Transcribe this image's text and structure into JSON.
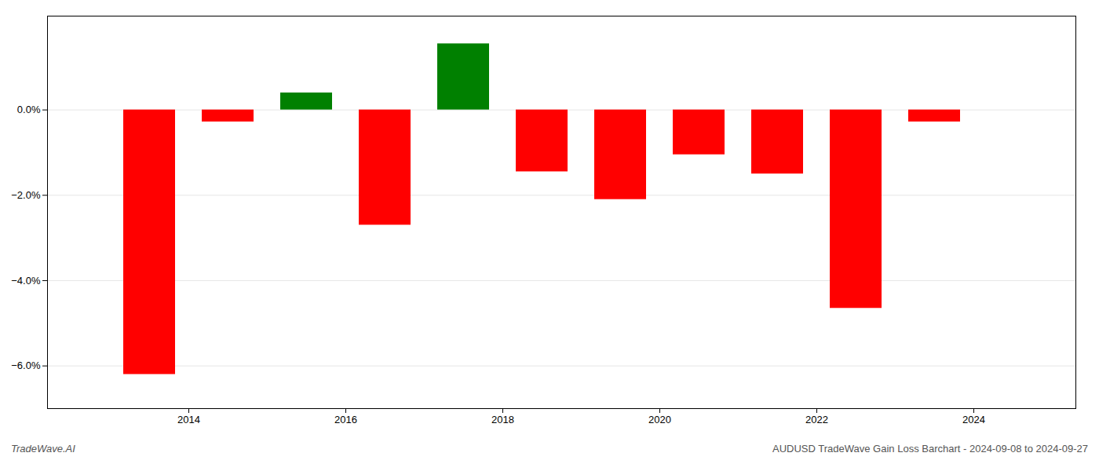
{
  "chart_data": {
    "type": "bar",
    "title": "AUDUSD TradeWave Gain Loss Barchart - 2024-09-08 to 2024-09-27",
    "annotations": [
      "TradeWave.AI"
    ],
    "x": [
      2013,
      2014,
      2015,
      2016,
      2017,
      2018,
      2019,
      2020,
      2021,
      2022,
      2023
    ],
    "values": [
      -6.2,
      -0.28,
      0.4,
      -2.7,
      1.55,
      -1.45,
      -2.1,
      -1.05,
      -1.5,
      -4.65,
      -0.28
    ],
    "colors": [
      "#ff0000",
      "#ff0000",
      "#008000",
      "#ff0000",
      "#008000",
      "#ff0000",
      "#ff0000",
      "#ff0000",
      "#ff0000",
      "#ff0000",
      "#ff0000"
    ],
    "xlim": [
      2012.2,
      2025.3
    ],
    "xticks": [
      2014,
      2016,
      2018,
      2020,
      2022,
      2024
    ],
    "ylim": [
      -7.0,
      2.2
    ],
    "yticks": [
      {
        "value": 0.0,
        "label": "0.0%"
      },
      {
        "value": -2.0,
        "label": "−2.0%"
      },
      {
        "value": -4.0,
        "label": "−4.0%"
      },
      {
        "value": -6.0,
        "label": "−6.0%"
      }
    ],
    "grid": true
  }
}
